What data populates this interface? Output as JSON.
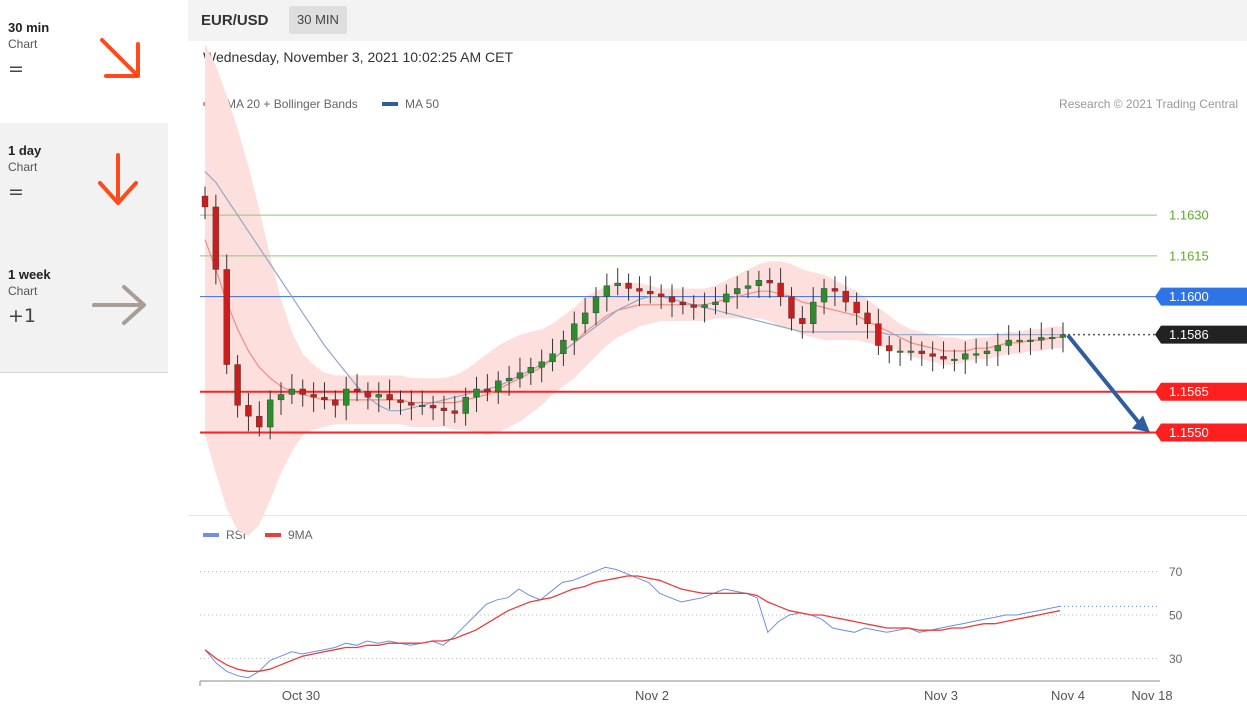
{
  "sidebar": {
    "items": [
      {
        "name": "30 min",
        "sub": "Chart",
        "symbol": "=",
        "arrow": "down-right",
        "color": "#ff4a1c",
        "icon": "arrow-down-right-icon"
      },
      {
        "name": "1 day",
        "sub": "Chart",
        "symbol": "=",
        "arrow": "down",
        "color": "#ff4a1c",
        "icon": "arrow-down-icon"
      },
      {
        "name": "1 week",
        "sub": "Chart",
        "symbol": "+1",
        "arrow": "right",
        "color": "#a89e96",
        "icon": "arrow-right-icon"
      }
    ]
  },
  "header": {
    "pair": "EUR/USD",
    "timeframe": "30 MIN",
    "datetime": "Wednesday, November 3, 2021 10:02:25 AM CET"
  },
  "legend": {
    "ma20": "MA 20 + Bollinger Bands",
    "ma50": "MA 50",
    "research": "Research © 2021 Trading Central",
    "rsi": "RSI",
    "ma9": "9MA"
  },
  "colors": {
    "up": "#2e8b2e",
    "down": "#cc1d1d",
    "band": "#fde0de",
    "ma20": "#f28b82",
    "ma50": "#8fa8c8",
    "resistance": "#8fc86a",
    "support": "#ff2222",
    "pivot": "#3a6fd9",
    "rsi": "#6f8fe0",
    "rsi_ma": "#ee3b3b",
    "projection": "#2f5d9e"
  },
  "chart_data": [
    {
      "type": "candlestick",
      "title": "EUR/USD",
      "ylim": [
        1.152,
        1.1665
      ],
      "x_ticks": [
        "Oct 30",
        "Nov 2",
        "Nov 3",
        "Nov 4",
        "Nov 18"
      ],
      "key_levels": [
        {
          "value": "1.1630",
          "kind": "resistance"
        },
        {
          "value": "1.1615",
          "kind": "resistance"
        },
        {
          "value": "1.1600",
          "kind": "pivot"
        },
        {
          "value": "1.1586",
          "kind": "last-price"
        },
        {
          "value": "1.1565",
          "kind": "support"
        },
        {
          "value": "1.1550",
          "kind": "support"
        }
      ],
      "close_series": [
        1.1633,
        1.161,
        1.1575,
        1.156,
        1.1556,
        1.1552,
        1.1562,
        1.1564,
        1.1566,
        1.1564,
        1.1563,
        1.1562,
        1.156,
        1.1566,
        1.1565,
        1.1563,
        1.1564,
        1.1562,
        1.1561,
        1.156,
        1.156,
        1.1559,
        1.1558,
        1.1557,
        1.1563,
        1.1566,
        1.1565,
        1.1569,
        1.157,
        1.1572,
        1.1574,
        1.1576,
        1.1579,
        1.1584,
        1.159,
        1.1594,
        1.16,
        1.1604,
        1.1605,
        1.1603,
        1.1602,
        1.1601,
        1.16,
        1.1598,
        1.1597,
        1.1596,
        1.1597,
        1.1598,
        1.1601,
        1.1603,
        1.1604,
        1.1606,
        1.1605,
        1.16,
        1.1592,
        1.159,
        1.1598,
        1.1603,
        1.1602,
        1.1598,
        1.1594,
        1.159,
        1.1582,
        1.158,
        1.158,
        1.158,
        1.1579,
        1.1578,
        1.1577,
        1.1577,
        1.1579,
        1.1579,
        1.158,
        1.1582,
        1.1584,
        1.1584,
        1.1584,
        1.1585,
        1.1585,
        1.1586
      ],
      "ma20_series": [
        1.1621,
        1.161,
        1.1598,
        1.1588,
        1.158,
        1.1574,
        1.157,
        1.1567,
        1.1565,
        1.1564,
        1.1563,
        1.1562,
        1.1562,
        1.1562,
        1.1562,
        1.1562,
        1.1562,
        1.1562,
        1.1562,
        1.1561,
        1.1561,
        1.1561,
        1.1561,
        1.1561,
        1.1562,
        1.1563,
        1.1564,
        1.1566,
        1.1568,
        1.157,
        1.1572,
        1.1574,
        1.1577,
        1.158,
        1.1583,
        1.1587,
        1.159,
        1.1593,
        1.1595,
        1.1596,
        1.1597,
        1.1597,
        1.1597,
        1.1597,
        1.1597,
        1.1597,
        1.1597,
        1.1598,
        1.1599,
        1.16,
        1.1601,
        1.1602,
        1.1602,
        1.1601,
        1.16,
        1.1598,
        1.1597,
        1.1596,
        1.1595,
        1.1594,
        1.1593,
        1.1591,
        1.1589,
        1.1587,
        1.1585,
        1.1583,
        1.1582,
        1.1581,
        1.158,
        1.158,
        1.158,
        1.1581,
        1.1581,
        1.1582,
        1.1583,
        1.1583,
        1.1584,
        1.1584,
        1.1585,
        1.1585
      ],
      "ma50_series": [
        1.1646,
        1.1642,
        1.1636,
        1.163,
        1.1624,
        1.1618,
        1.1612,
        1.1606,
        1.16,
        1.1594,
        1.1588,
        1.1582,
        1.1577,
        1.1572,
        1.1567,
        1.1563,
        1.156,
        1.1558,
        1.1558,
        1.1559,
        1.156,
        1.1561,
        1.1562,
        1.1563,
        1.1564,
        1.1565,
        1.1566,
        1.1567,
        1.1569,
        1.1571,
        1.1573,
        1.1575,
        1.1577,
        1.158,
        1.1583,
        1.1586,
        1.1589,
        1.1592,
        1.1595,
        1.1597,
        1.1599,
        1.16,
        1.16,
        1.1599,
        1.1598,
        1.1597,
        1.1596,
        1.1595,
        1.1594,
        1.1593,
        1.1592,
        1.1591,
        1.159,
        1.1589,
        1.1588,
        1.1587,
        1.1587,
        1.1587,
        1.1587,
        1.1587,
        1.1587,
        1.1587,
        1.1587,
        1.1586,
        1.1586,
        1.1586,
        1.1586,
        1.1586,
        1.1586,
        1.1586,
        1.1586,
        1.1586,
        1.1586,
        1.1586,
        1.1586,
        1.1586,
        1.1586,
        1.1586,
        1.1586,
        1.1586
      ],
      "band_width_series": [
        0.0072,
        0.0075,
        0.0076,
        0.0074,
        0.0068,
        0.0058,
        0.0045,
        0.0032,
        0.0022,
        0.0015,
        0.0012,
        0.001,
        0.0009,
        0.0009,
        0.0009,
        0.0009,
        0.0009,
        0.0009,
        0.0009,
        0.0009,
        0.0009,
        0.0009,
        0.0009,
        0.001,
        0.0011,
        0.0013,
        0.0015,
        0.0016,
        0.0016,
        0.0016,
        0.0015,
        0.0014,
        0.0013,
        0.0013,
        0.0013,
        0.0013,
        0.0012,
        0.0011,
        0.001,
        0.0009,
        0.0008,
        0.0007,
        0.0006,
        0.0006,
        0.0006,
        0.0006,
        0.0006,
        0.0006,
        0.0007,
        0.0008,
        0.0009,
        0.001,
        0.0011,
        0.0012,
        0.0012,
        0.0012,
        0.0012,
        0.0012,
        0.0011,
        0.001,
        0.0009,
        0.0008,
        0.0007,
        0.0006,
        0.0005,
        0.0005,
        0.0005,
        0.0005,
        0.0005,
        0.0005,
        0.0004,
        0.0004,
        0.0004,
        0.0004,
        0.0004,
        0.0004,
        0.0004,
        0.0004,
        0.0004,
        0.0004
      ],
      "projection": {
        "from": 1.1586,
        "to": 1.155
      }
    },
    {
      "type": "line",
      "title": "RSI",
      "ylim": [
        20,
        80
      ],
      "y_ticks": [
        "70",
        "50",
        "30"
      ],
      "series": [
        {
          "name": "RSI",
          "values": [
            34,
            28,
            24,
            22,
            21,
            24,
            29,
            31,
            33,
            32,
            33,
            34,
            35,
            37,
            36,
            38,
            37,
            38,
            37,
            36,
            37,
            38,
            36,
            40,
            45,
            50,
            55,
            57,
            58,
            62,
            59,
            57,
            61,
            65,
            66,
            68,
            70,
            72,
            71,
            69,
            67,
            65,
            60,
            58,
            56,
            57,
            58,
            60,
            62,
            61,
            60,
            58,
            42,
            47,
            50,
            51,
            50,
            48,
            44,
            43,
            42,
            44,
            43,
            42,
            43,
            44,
            42,
            43,
            44,
            45,
            46,
            47,
            48,
            49,
            50,
            50,
            51,
            52,
            53,
            54
          ]
        },
        {
          "name": "9MA",
          "values": [
            34,
            30,
            27,
            25,
            24,
            24,
            25,
            27,
            29,
            31,
            32,
            33,
            34,
            35,
            35,
            36,
            36,
            37,
            37,
            37,
            37,
            38,
            38,
            39,
            41,
            43,
            46,
            49,
            52,
            54,
            56,
            57,
            58,
            60,
            62,
            63,
            65,
            66,
            67,
            68,
            68,
            67,
            66,
            64,
            62,
            61,
            60,
            60,
            60,
            60,
            60,
            59,
            56,
            54,
            52,
            51,
            50,
            50,
            49,
            48,
            47,
            46,
            45,
            44,
            44,
            44,
            43,
            43,
            43,
            44,
            44,
            45,
            46,
            46,
            47,
            48,
            49,
            50,
            51,
            52
          ]
        }
      ]
    }
  ]
}
